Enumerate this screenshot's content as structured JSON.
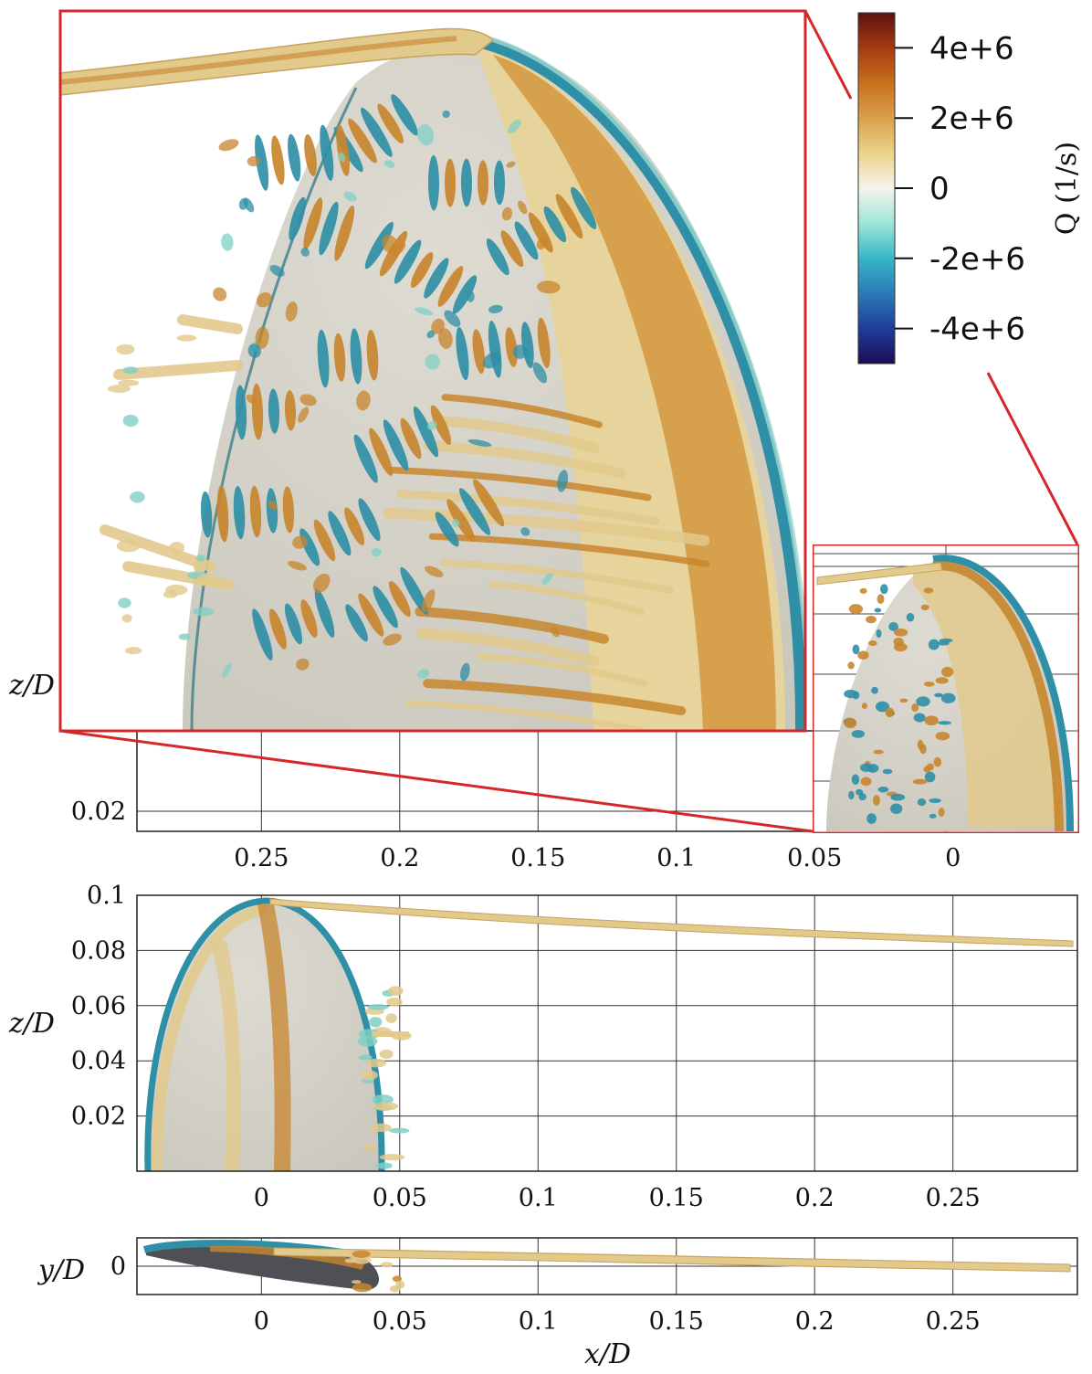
{
  "chart_data": [
    {
      "type": "heatmap",
      "view": "top view",
      "xlabel": "",
      "ylabel": "z/D",
      "xlim": [
        0.295,
        -0.045
      ],
      "ylim": [
        0.0,
        0.1
      ],
      "x_ticks": [
        "0.25",
        "0.2",
        "0.15",
        "0.1",
        "0.05",
        "0"
      ],
      "x_tick_values": [
        0.25,
        0.2,
        0.15,
        0.1,
        0.05,
        0
      ],
      "y_ticks": [
        "0.02"
      ],
      "y_tick_values": [
        0.02
      ],
      "grid": true
    },
    {
      "type": "heatmap",
      "view": "side view",
      "xlabel": "",
      "ylabel": "z/D",
      "xlim": [
        -0.045,
        0.295
      ],
      "ylim": [
        0.0,
        0.1
      ],
      "x_ticks": [
        "0",
        "0.05",
        "0.1",
        "0.15",
        "0.2",
        "0.25"
      ],
      "x_tick_values": [
        0,
        0.05,
        0.1,
        0.15,
        0.2,
        0.25
      ],
      "y_ticks": [
        "0.1",
        "0.08",
        "0.06",
        "0.04",
        "0.02"
      ],
      "y_tick_values": [
        0.1,
        0.08,
        0.06,
        0.04,
        0.02
      ],
      "grid": true
    },
    {
      "type": "heatmap",
      "view": "bottom view",
      "xlabel": "x/D",
      "ylabel": "y/D",
      "xlim": [
        -0.045,
        0.295
      ],
      "ylim": [
        -0.008,
        0.008
      ],
      "x_ticks": [
        "0",
        "0.05",
        "0.1",
        "0.15",
        "0.2",
        "0.25"
      ],
      "x_tick_values": [
        0,
        0.05,
        0.1,
        0.15,
        0.2,
        0.25
      ],
      "y_ticks": [
        "0"
      ],
      "y_tick_values": [
        0
      ],
      "grid": true
    }
  ],
  "colorbar": {
    "title": "Q (1/s)",
    "range": [
      -5000000,
      5000000
    ],
    "tick_labels": [
      "4e+6",
      "2e+6",
      "0",
      "-2e+6",
      "-4e+6"
    ],
    "tick_values": [
      4000000,
      2000000,
      0,
      -2000000,
      -4000000
    ],
    "colors": [
      "#1b0c55",
      "#1f3d9a",
      "#2b7bb5",
      "#37b6c6",
      "#9fe6d6",
      "#f6f4ec",
      "#ecd38c",
      "#d9a04a",
      "#c7701e",
      "#a63a13",
      "#5e1012"
    ]
  },
  "colors": {
    "zoom_frame": "#d62728",
    "surface": "#d6d4cc",
    "tip_vortex": "#e2c98c",
    "positive_q": "#c8862e",
    "negative_q": "#2f8fa6"
  }
}
